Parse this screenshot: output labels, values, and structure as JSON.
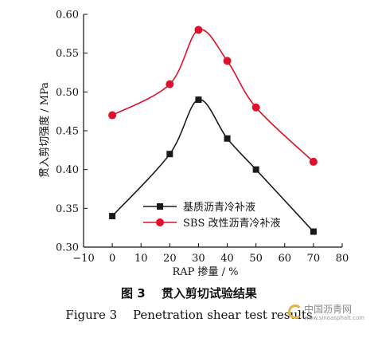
{
  "chart_data": {
    "type": "line",
    "xlabel": "RAP 掺量 / %",
    "ylabel": "贯入剪切强度 / MPa",
    "xlim": [
      -10,
      80
    ],
    "ylim": [
      0.3,
      0.6
    ],
    "x_ticks": [
      "−10",
      "0",
      "10",
      "20",
      "30",
      "40",
      "50",
      "60",
      "70",
      "80"
    ],
    "x_tick_values": [
      -10,
      0,
      10,
      20,
      30,
      40,
      50,
      60,
      70,
      80
    ],
    "y_ticks": [
      "0.30",
      "0.35",
      "0.40",
      "0.45",
      "0.50",
      "0.55",
      "0.60"
    ],
    "y_tick_values": [
      0.3,
      0.35,
      0.4,
      0.45,
      0.5,
      0.55,
      0.6
    ],
    "legend_position": "lower-left",
    "series": [
      {
        "name": "基质沥青冷补液",
        "color": "#1a1a1a",
        "marker": "square",
        "x": [
          0,
          20,
          30,
          40,
          50,
          70
        ],
        "values": [
          0.34,
          0.42,
          0.49,
          0.44,
          0.4,
          0.32
        ]
      },
      {
        "name": "SBS 改性沥青冷补液",
        "color": "#e0102a",
        "marker": "circle",
        "x": [
          0,
          20,
          30,
          40,
          50,
          70
        ],
        "values": [
          0.47,
          0.51,
          0.58,
          0.54,
          0.48,
          0.41
        ]
      }
    ]
  },
  "caption": {
    "chinese": "图 3　 贯入剪切试验结果",
    "english": "Figure 3　 Penetration shear test results"
  },
  "watermark": {
    "text": "中国沥青网",
    "url": "www.sinoasphalt.com"
  }
}
